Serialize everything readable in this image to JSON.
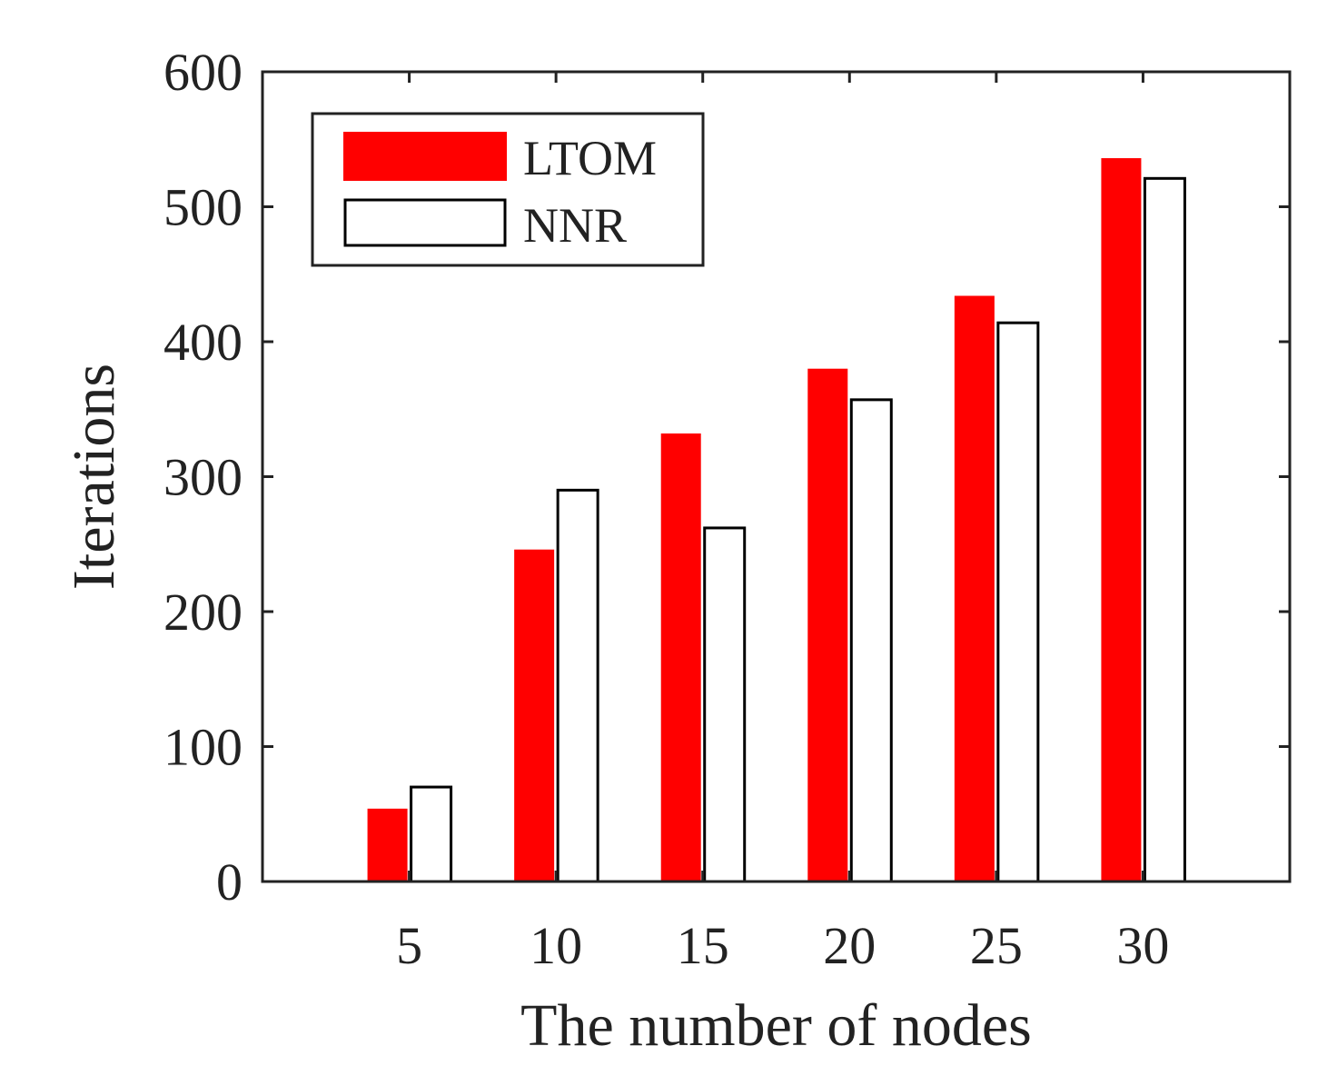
{
  "chart_data": {
    "type": "bar",
    "title": "",
    "xlabel": "The number of nodes",
    "ylabel": "Iterations",
    "categories": [
      "5",
      "10",
      "15",
      "20",
      "25",
      "30"
    ],
    "series": [
      {
        "name": "LTOM",
        "values": [
          54,
          246,
          332,
          380,
          434,
          536
        ],
        "color": "#ff0000"
      },
      {
        "name": "NNR",
        "values": [
          70,
          290,
          262,
          357,
          414,
          521
        ],
        "color": "#ffffff"
      }
    ],
    "xlim": [
      0,
      35
    ],
    "ylim": [
      0,
      600
    ],
    "yticks": [
      0,
      100,
      200,
      300,
      400,
      500,
      600
    ],
    "grid": false,
    "legend": "top-left",
    "colors": {
      "LTOM": "#ff0000",
      "NNR": "#ffffff",
      "edge": "#000000",
      "axis": "#222222"
    }
  }
}
